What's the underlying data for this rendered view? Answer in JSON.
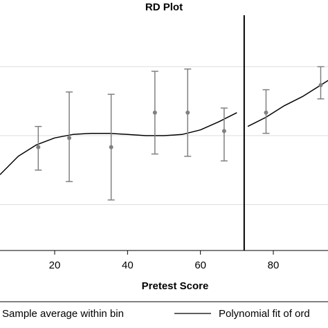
{
  "chart_data": {
    "type": "scatter",
    "title": "RD Plot",
    "xlabel": "Pretest Score",
    "ylabel": "",
    "xlim": [
      5,
      95
    ],
    "ylim": [
      0,
      1
    ],
    "x_ticks": [
      20,
      40,
      60,
      80
    ],
    "y_gridlines": [
      0.2,
      0.5,
      0.8
    ],
    "cutoff": 72,
    "grid": true,
    "legend_position": "bottom",
    "colors": {
      "points": "#808080",
      "fit": "#000000",
      "cutoff": "#000000",
      "grid": "#dddddd"
    },
    "series": [
      {
        "name": "Sample average within bin",
        "kind": "points_with_ci",
        "points": [
          {
            "x": 15.5,
            "y": 0.45,
            "lo": 0.35,
            "hi": 0.54
          },
          {
            "x": 24,
            "y": 0.49,
            "lo": 0.3,
            "hi": 0.69
          },
          {
            "x": 35.5,
            "y": 0.45,
            "lo": 0.22,
            "hi": 0.68
          },
          {
            "x": 47.5,
            "y": 0.6,
            "lo": 0.42,
            "hi": 0.78
          },
          {
            "x": 56.5,
            "y": 0.6,
            "lo": 0.41,
            "hi": 0.79
          },
          {
            "x": 66.5,
            "y": 0.52,
            "lo": 0.39,
            "hi": 0.62
          },
          {
            "x": 78,
            "y": 0.6,
            "lo": 0.51,
            "hi": 0.7
          },
          {
            "x": 93,
            "y": 0.72,
            "lo": 0.66,
            "hi": 0.8
          }
        ]
      },
      {
        "name": "Polynomial fit of ord",
        "kind": "line",
        "left": {
          "x": [
            5,
            10,
            15,
            20,
            25,
            30,
            35,
            40,
            45,
            50,
            55,
            60,
            65,
            70
          ],
          "y": [
            0.33,
            0.41,
            0.46,
            0.49,
            0.505,
            0.51,
            0.51,
            0.505,
            0.5,
            0.5,
            0.505,
            0.525,
            0.56,
            0.6
          ]
        },
        "right": {
          "x": [
            73,
            78,
            83,
            88,
            93,
            97
          ],
          "y": [
            0.54,
            0.58,
            0.63,
            0.67,
            0.72,
            0.76
          ]
        }
      }
    ],
    "legend": [
      "Sample average within bin",
      "Polynomial fit of ord"
    ]
  }
}
